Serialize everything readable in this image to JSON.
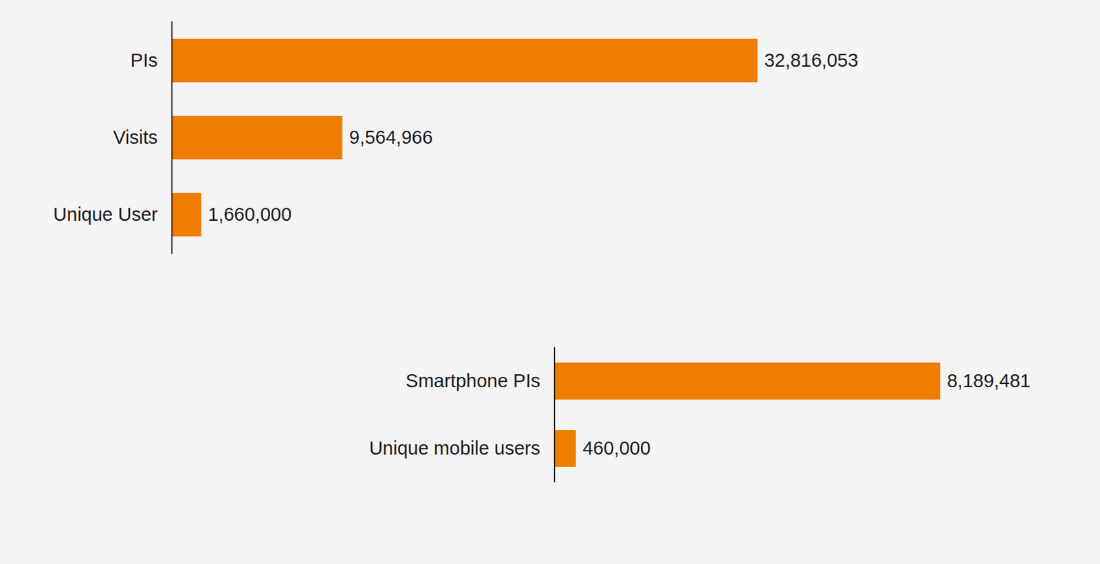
{
  "chart_data": [
    {
      "type": "bar",
      "orientation": "horizontal",
      "categories": [
        "PIs",
        "Visits",
        "Unique User"
      ],
      "values": [
        32816053,
        9564966,
        1660000
      ],
      "value_labels": [
        "32,816,053",
        "9,564,966",
        "1,660,000"
      ],
      "color": "#ee7d00",
      "xlim": [
        0,
        40000000
      ],
      "data_labels": true,
      "tick_labels": "y"
    },
    {
      "type": "bar",
      "orientation": "horizontal",
      "categories": [
        "Smartphone PIs",
        "Unique mobile users"
      ],
      "values": [
        8189481,
        460000
      ],
      "value_labels": [
        "8,189,481",
        "460,000"
      ],
      "color": "#ee7d00",
      "xlim": [
        0,
        10000000
      ],
      "data_labels": true,
      "tick_labels": "y"
    }
  ]
}
